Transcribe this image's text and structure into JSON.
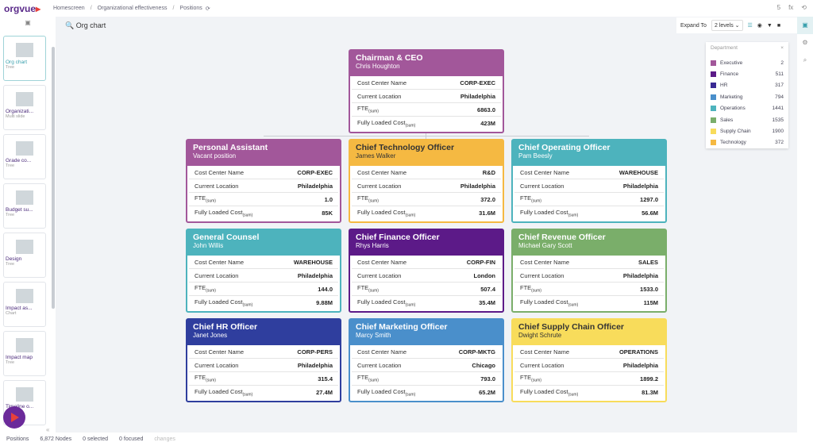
{
  "topbar": {
    "logo": "orgvue",
    "crumbs": [
      "Homescreen",
      "Organizational effectiveness",
      "Positions"
    ],
    "user_count": "5",
    "fx": "fx"
  },
  "sidebar": {
    "items": [
      {
        "label": "Org chart",
        "type": "Tree"
      },
      {
        "label": "Organizati...",
        "type": "Multi slide"
      },
      {
        "label": "Grade co...",
        "type": "Tree"
      },
      {
        "label": "Budget su...",
        "type": "Tree"
      },
      {
        "label": "Design",
        "type": "Tree"
      },
      {
        "label": "Impact as...",
        "type": "Chart"
      },
      {
        "label": "Impact map",
        "type": "Tree"
      },
      {
        "label": "Timeline o...",
        "type": ""
      }
    ]
  },
  "view": {
    "title": "Org chart"
  },
  "toolbar": {
    "expand_label": "Expand To",
    "levels": "2 levels"
  },
  "legend": {
    "title": "Department",
    "items": [
      {
        "name": "Executive",
        "count": "2",
        "color": "#a2579a"
      },
      {
        "name": "Finance",
        "count": "511",
        "color": "#5c1a88"
      },
      {
        "name": "HR",
        "count": "317",
        "color": "#3a2a94"
      },
      {
        "name": "Marketing",
        "count": "794",
        "color": "#4a8fcb"
      },
      {
        "name": "Operations",
        "count": "1441",
        "color": "#4db3bd"
      },
      {
        "name": "Sales",
        "count": "1535",
        "color": "#7aae6a"
      },
      {
        "name": "Supply Chain",
        "count": "1900",
        "color": "#f8dc5b"
      },
      {
        "name": "Technology",
        "count": "372",
        "color": "#f5b942"
      }
    ]
  },
  "fields": {
    "cc": "Cost Center Name",
    "loc": "Current Location",
    "fte": "FTE",
    "flc": "Fully Loaded Cost",
    "sum": "(sum)"
  },
  "cards": [
    {
      "title": "Chairman & CEO",
      "name": "Chris Houghton",
      "cc": "CORP-EXEC",
      "loc": "Philadelphia",
      "fte": "6863.0",
      "flc": "423M",
      "color": "#a2579a"
    },
    {
      "title": "Personal Assistant",
      "name": "Vacant position",
      "cc": "CORP-EXEC",
      "loc": "Philadelphia",
      "fte": "1.0",
      "flc": "85K",
      "color": "#a2579a"
    },
    {
      "title": "Chief Technology Officer",
      "name": "James Walker",
      "cc": "R&D",
      "loc": "Philadelphia",
      "fte": "372.0",
      "flc": "31.6M",
      "color": "#f5b942"
    },
    {
      "title": "Chief Operating Officer",
      "name": "Pam Beesly",
      "cc": "WAREHOUSE",
      "loc": "Philadelphia",
      "fte": "1297.0",
      "flc": "56.6M",
      "color": "#4db3bd"
    },
    {
      "title": "General Counsel",
      "name": "John Willis",
      "cc": "WAREHOUSE",
      "loc": "Philadelphia",
      "fte": "144.0",
      "flc": "9.88M",
      "color": "#4db3bd"
    },
    {
      "title": "Chief Finance Officer",
      "name": "Rhys Harris",
      "cc": "CORP-FIN",
      "loc": "London",
      "fte": "507.4",
      "flc": "35.4M",
      "color": "#5c1a88"
    },
    {
      "title": "Chief Revenue Officer",
      "name": "Michael Gary Scott",
      "cc": "SALES",
      "loc": "Philadelphia",
      "fte": "1533.0",
      "flc": "115M",
      "color": "#7aae6a"
    },
    {
      "title": "Chief HR Officer",
      "name": "Janet Jones",
      "cc": "CORP-PERS",
      "loc": "Philadelphia",
      "fte": "315.4",
      "flc": "27.4M",
      "color": "#2f3e9e"
    },
    {
      "title": "Chief Marketing Officer",
      "name": "Marcy Smith",
      "cc": "CORP-MKTG",
      "loc": "Chicago",
      "fte": "793.0",
      "flc": "65.2M",
      "color": "#4a8fcb"
    },
    {
      "title": "Chief Supply Chain Officer",
      "name": "Dwight Schrute",
      "cc": "OPERATIONS",
      "loc": "Philadelphia",
      "fte": "1899.2",
      "flc": "81.3M",
      "color": "#f8dc5b"
    }
  ],
  "status": {
    "positions": "Positions",
    "nodes": "6,872 Nodes",
    "selected": "0 selected",
    "focused": "0 focused",
    "changes": "changes"
  }
}
